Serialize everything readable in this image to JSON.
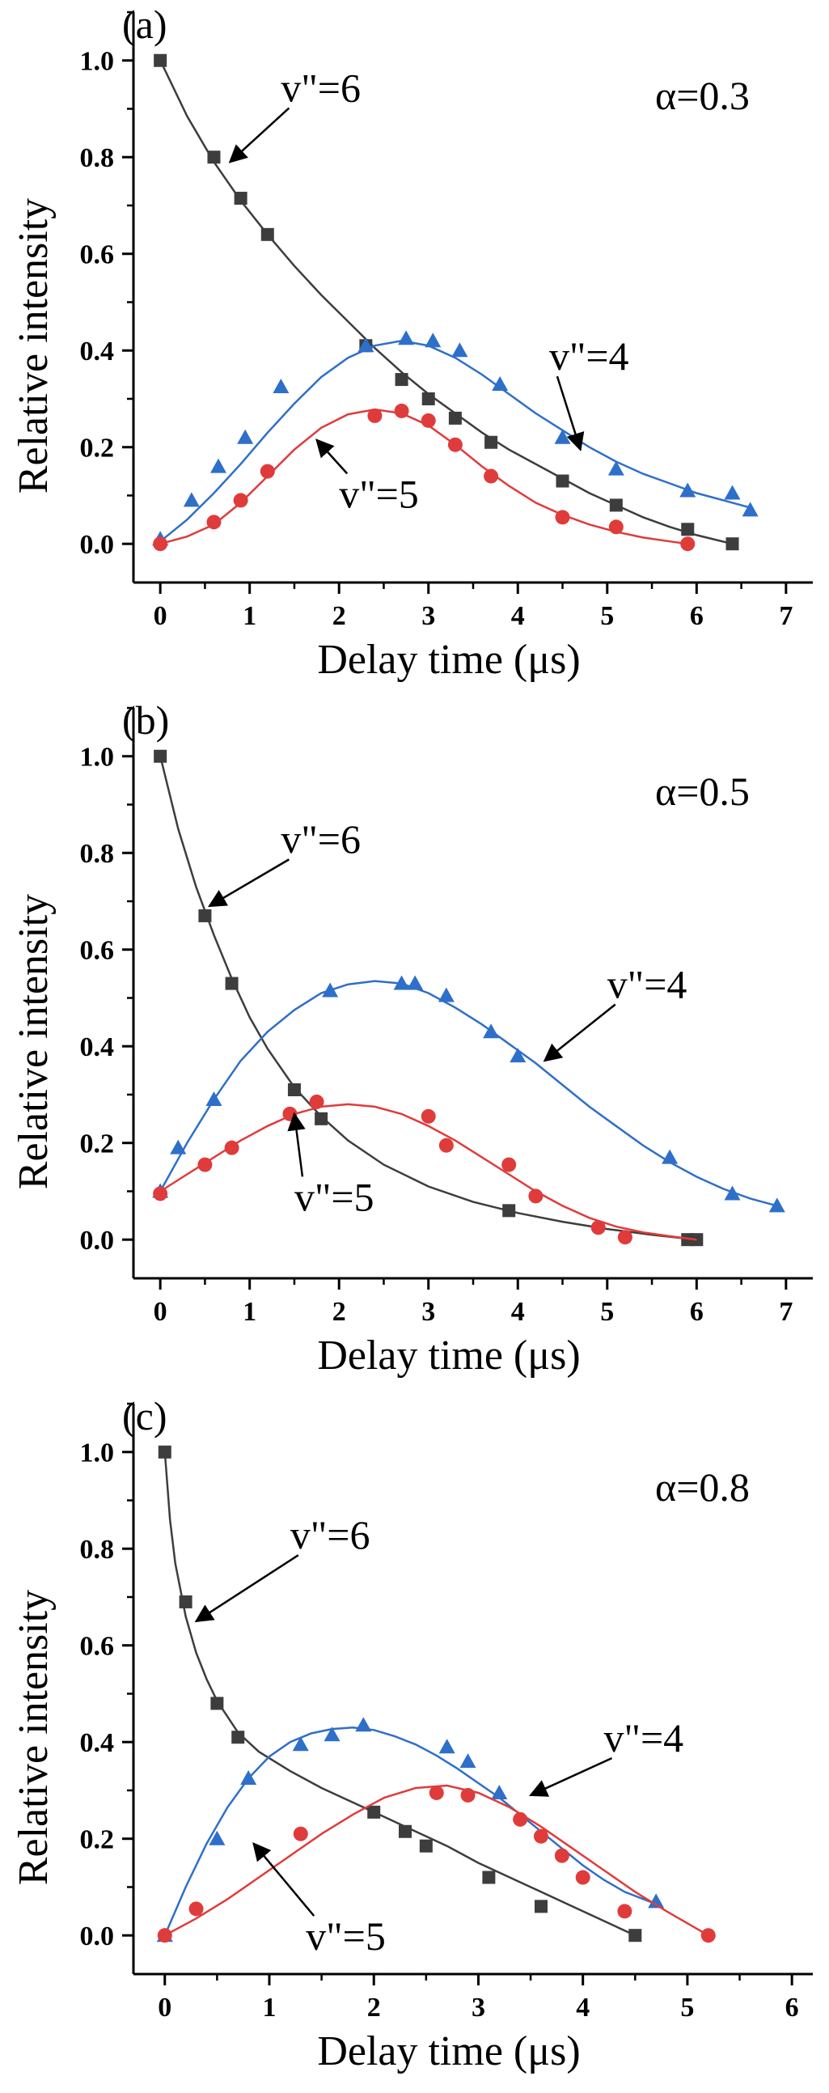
{
  "chart_data": [
    {
      "type": "scatter",
      "panel_label": "(a)",
      "alpha_label": "α=0.3",
      "xlabel": "Delay time (μs)",
      "ylabel": "Relative intensity",
      "xlim": [
        -0.3,
        7.3
      ],
      "ylim": [
        -0.08,
        1.1
      ],
      "x_ticks": [
        "0",
        "1",
        "2",
        "3",
        "4",
        "5",
        "6",
        "7"
      ],
      "y_ticks": [
        "0.0",
        "0.2",
        "0.4",
        "0.6",
        "0.8",
        "1.0"
      ],
      "x_tick_values": [
        0,
        1,
        2,
        3,
        4,
        5,
        6,
        7
      ],
      "y_tick_values": [
        0,
        0.2,
        0.4,
        0.6,
        0.8,
        1.0
      ],
      "grid": false,
      "series": [
        {
          "name": "v\"=6",
          "marker": "square",
          "color": "#3d3d3d",
          "x": [
            0,
            0.6,
            0.9,
            1.2,
            2.3,
            2.7,
            3.0,
            3.3,
            3.7,
            4.5,
            5.1,
            5.9,
            6.4
          ],
          "y": [
            1.0,
            0.8,
            0.715,
            0.64,
            0.41,
            0.34,
            0.3,
            0.26,
            0.21,
            0.13,
            0.08,
            0.03,
            0.0
          ],
          "fit_x": [
            0,
            0.3,
            0.6,
            0.9,
            1.2,
            1.5,
            1.8,
            2.1,
            2.4,
            2.7,
            3.0,
            3.3,
            3.6,
            3.9,
            4.2,
            4.5,
            4.8,
            5.1,
            5.4,
            5.7,
            6.0,
            6.4
          ],
          "fit_y": [
            1.0,
            0.885,
            0.79,
            0.71,
            0.64,
            0.575,
            0.515,
            0.46,
            0.405,
            0.355,
            0.31,
            0.27,
            0.23,
            0.195,
            0.165,
            0.135,
            0.105,
            0.08,
            0.055,
            0.035,
            0.018,
            0.0
          ]
        },
        {
          "name": "v\"=4",
          "marker": "triangle",
          "color": "#2e6fc9",
          "x": [
            0,
            0.35,
            0.65,
            0.95,
            1.35,
            2.3,
            2.75,
            3.05,
            3.35,
            3.8,
            4.5,
            5.1,
            5.9,
            6.4,
            6.6
          ],
          "y": [
            0.01,
            0.09,
            0.16,
            0.22,
            0.325,
            0.41,
            0.425,
            0.42,
            0.4,
            0.33,
            0.22,
            0.155,
            0.11,
            0.105,
            0.07
          ],
          "fit_x": [
            0,
            0.3,
            0.6,
            0.9,
            1.2,
            1.5,
            1.8,
            2.1,
            2.4,
            2.7,
            3.0,
            3.3,
            3.6,
            3.9,
            4.2,
            4.5,
            4.8,
            5.1,
            5.4,
            5.7,
            6.0,
            6.3,
            6.6
          ],
          "fit_y": [
            0.005,
            0.05,
            0.105,
            0.165,
            0.23,
            0.29,
            0.345,
            0.385,
            0.41,
            0.42,
            0.41,
            0.385,
            0.35,
            0.31,
            0.27,
            0.235,
            0.2,
            0.17,
            0.145,
            0.125,
            0.105,
            0.09,
            0.075
          ]
        },
        {
          "name": "v\"=5",
          "marker": "circle",
          "color": "#e03b3b",
          "x": [
            0,
            0.6,
            0.9,
            1.2,
            2.4,
            2.7,
            3.0,
            3.3,
            3.7,
            4.5,
            5.1,
            5.9
          ],
          "y": [
            0.0,
            0.045,
            0.09,
            0.15,
            0.265,
            0.275,
            0.255,
            0.205,
            0.14,
            0.055,
            0.035,
            0.0
          ],
          "fit_x": [
            0,
            0.3,
            0.6,
            0.9,
            1.2,
            1.5,
            1.8,
            2.1,
            2.4,
            2.7,
            3.0,
            3.3,
            3.6,
            3.9,
            4.2,
            4.5,
            4.8,
            5.1,
            5.4,
            5.7,
            5.9
          ],
          "fit_y": [
            0.0,
            0.015,
            0.04,
            0.085,
            0.14,
            0.195,
            0.24,
            0.268,
            0.278,
            0.27,
            0.245,
            0.205,
            0.16,
            0.12,
            0.085,
            0.06,
            0.04,
            0.025,
            0.013,
            0.005,
            0.0
          ]
        }
      ],
      "annotations": [
        {
          "text": "v\"=6",
          "series": "v\"=6",
          "tx": 1.35,
          "ty": 0.915,
          "ax": 0.78,
          "ay": 0.79
        },
        {
          "text": "v\"=4",
          "series": "v\"=4",
          "tx": 4.35,
          "ty": 0.36,
          "ax": 4.7,
          "ay": 0.195
        },
        {
          "text": "v\"=5",
          "series": "v\"=5",
          "tx": 2.0,
          "ty": 0.075,
          "ax": 1.75,
          "ay": 0.215
        }
      ]
    },
    {
      "type": "scatter",
      "panel_label": "(b)",
      "alpha_label": "α=0.5",
      "xlabel": "Delay time  (μs)",
      "ylabel": "Relative intensity",
      "xlim": [
        -0.3,
        7.3
      ],
      "ylim": [
        -0.08,
        1.1
      ],
      "x_ticks": [
        "0",
        "1",
        "2",
        "3",
        "4",
        "5",
        "6",
        "7"
      ],
      "y_ticks": [
        "0.0",
        "0.2",
        "0.4",
        "0.6",
        "0.8",
        "1.0"
      ],
      "x_tick_values": [
        0,
        1,
        2,
        3,
        4,
        5,
        6,
        7
      ],
      "y_tick_values": [
        0,
        0.2,
        0.4,
        0.6,
        0.8,
        1.0
      ],
      "grid": false,
      "series": [
        {
          "name": "v\"=6",
          "marker": "square",
          "color": "#3d3d3d",
          "x": [
            0,
            0.5,
            0.8,
            1.5,
            1.8,
            3.9,
            5.9,
            6.0
          ],
          "y": [
            1.0,
            0.67,
            0.53,
            0.31,
            0.25,
            0.06,
            0.0,
            0.0
          ],
          "fit_x": [
            0,
            0.2,
            0.4,
            0.6,
            0.8,
            1.0,
            1.2,
            1.5,
            1.8,
            2.1,
            2.5,
            3.0,
            3.5,
            4.0,
            4.5,
            5.0,
            5.5,
            6.0
          ],
          "fit_y": [
            1.0,
            0.85,
            0.73,
            0.63,
            0.54,
            0.46,
            0.395,
            0.315,
            0.255,
            0.205,
            0.155,
            0.11,
            0.078,
            0.055,
            0.037,
            0.022,
            0.01,
            0.0
          ]
        },
        {
          "name": "v\"=4",
          "marker": "triangle",
          "color": "#2e6fc9",
          "x": [
            0,
            0.2,
            0.6,
            1.9,
            2.7,
            2.85,
            3.2,
            3.7,
            4.0,
            5.7,
            6.4,
            6.9
          ],
          "y": [
            0.1,
            0.19,
            0.29,
            0.515,
            0.53,
            0.53,
            0.505,
            0.43,
            0.38,
            0.17,
            0.095,
            0.07
          ],
          "fit_x": [
            0,
            0.3,
            0.6,
            0.9,
            1.2,
            1.5,
            1.8,
            2.1,
            2.4,
            2.7,
            3.0,
            3.3,
            3.6,
            3.9,
            4.2,
            4.5,
            4.8,
            5.1,
            5.4,
            5.7,
            6.0,
            6.3,
            6.6,
            6.9
          ],
          "fit_y": [
            0.1,
            0.2,
            0.29,
            0.37,
            0.43,
            0.475,
            0.51,
            0.528,
            0.535,
            0.53,
            0.51,
            0.48,
            0.445,
            0.405,
            0.365,
            0.32,
            0.275,
            0.235,
            0.195,
            0.16,
            0.13,
            0.105,
            0.085,
            0.07
          ]
        },
        {
          "name": "v\"=5",
          "marker": "circle",
          "color": "#e03b3b",
          "x": [
            0,
            0.5,
            0.8,
            1.45,
            1.75,
            3.0,
            3.2,
            3.9,
            4.2,
            4.9,
            5.2
          ],
          "y": [
            0.095,
            0.155,
            0.19,
            0.26,
            0.285,
            0.255,
            0.195,
            0.155,
            0.09,
            0.025,
            0.005
          ],
          "fit_x": [
            0,
            0.3,
            0.6,
            0.9,
            1.2,
            1.5,
            1.8,
            2.1,
            2.4,
            2.7,
            3.0,
            3.3,
            3.6,
            3.9,
            4.2,
            4.5,
            4.8,
            5.1,
            5.4,
            5.7,
            6.0
          ],
          "fit_y": [
            0.1,
            0.135,
            0.17,
            0.205,
            0.235,
            0.26,
            0.275,
            0.28,
            0.275,
            0.26,
            0.235,
            0.205,
            0.17,
            0.135,
            0.1,
            0.07,
            0.045,
            0.027,
            0.015,
            0.007,
            0.0
          ]
        }
      ],
      "annotations": [
        {
          "text": "v\"=6",
          "series": "v\"=6",
          "tx": 1.35,
          "ty": 0.8,
          "ax": 0.55,
          "ay": 0.69
        },
        {
          "text": "v\"=4",
          "series": "v\"=4",
          "tx": 5.0,
          "ty": 0.5,
          "ax": 4.3,
          "ay": 0.37
        },
        {
          "text": "v\"=5",
          "series": "v\"=5",
          "tx": 1.5,
          "ty": 0.06,
          "ax": 1.5,
          "ay": 0.26
        }
      ]
    },
    {
      "type": "scatter",
      "panel_label": "(c)",
      "alpha_label": "α=0.8",
      "xlabel": "Delay time (μs)",
      "ylabel": "Relative intensity",
      "xlim": [
        -0.3,
        6.2
      ],
      "ylim": [
        -0.08,
        1.1
      ],
      "x_ticks": [
        "0",
        "1",
        "2",
        "3",
        "4",
        "5",
        "6"
      ],
      "y_ticks": [
        "0.0",
        "0.2",
        "0.4",
        "0.6",
        "0.8",
        "1.0"
      ],
      "x_tick_values": [
        0,
        1,
        2,
        3,
        4,
        5,
        6
      ],
      "y_tick_values": [
        0,
        0.2,
        0.4,
        0.6,
        0.8,
        1.0
      ],
      "grid": false,
      "series": [
        {
          "name": "v\"=6",
          "marker": "square",
          "color": "#3d3d3d",
          "x": [
            0,
            0.2,
            0.5,
            0.7,
            2.0,
            2.3,
            2.5,
            3.1,
            3.6,
            4.5
          ],
          "y": [
            1.0,
            0.69,
            0.48,
            0.41,
            0.255,
            0.215,
            0.185,
            0.12,
            0.06,
            0.0
          ],
          "fit_x": [
            0,
            0.05,
            0.1,
            0.2,
            0.3,
            0.4,
            0.5,
            0.7,
            0.9,
            1.2,
            1.5,
            1.8,
            2.1,
            2.4,
            2.7,
            3.0,
            3.3,
            3.6,
            3.9,
            4.2,
            4.5
          ],
          "fit_y": [
            1.0,
            0.86,
            0.77,
            0.66,
            0.585,
            0.53,
            0.485,
            0.42,
            0.38,
            0.34,
            0.305,
            0.275,
            0.245,
            0.215,
            0.185,
            0.15,
            0.12,
            0.09,
            0.06,
            0.03,
            0.0
          ]
        },
        {
          "name": "v\"=4",
          "marker": "triangle",
          "color": "#2e6fc9",
          "x": [
            0,
            0.5,
            0.8,
            1.3,
            1.6,
            1.9,
            2.7,
            2.9,
            3.2,
            4.7
          ],
          "y": [
            0.0,
            0.2,
            0.325,
            0.395,
            0.415,
            0.435,
            0.39,
            0.36,
            0.295,
            0.07
          ],
          "fit_x": [
            0,
            0.2,
            0.4,
            0.6,
            0.8,
            1.0,
            1.2,
            1.4,
            1.6,
            1.8,
            2.0,
            2.2,
            2.4,
            2.6,
            2.8,
            3.0,
            3.2,
            3.4,
            3.6,
            3.8,
            4.0,
            4.2,
            4.4,
            4.7
          ],
          "fit_y": [
            0.0,
            0.1,
            0.19,
            0.265,
            0.325,
            0.37,
            0.4,
            0.418,
            0.427,
            0.43,
            0.425,
            0.412,
            0.395,
            0.372,
            0.345,
            0.315,
            0.285,
            0.25,
            0.215,
            0.18,
            0.145,
            0.115,
            0.09,
            0.065
          ]
        },
        {
          "name": "v\"=5",
          "marker": "circle",
          "color": "#e03b3b",
          "x": [
            0,
            0.3,
            1.3,
            2.6,
            2.9,
            3.4,
            3.6,
            3.8,
            4.0,
            4.4,
            5.2
          ],
          "y": [
            0.0,
            0.055,
            0.21,
            0.295,
            0.29,
            0.24,
            0.205,
            0.165,
            0.12,
            0.05,
            0.0
          ],
          "fit_x": [
            0,
            0.3,
            0.6,
            0.9,
            1.2,
            1.5,
            1.8,
            2.1,
            2.4,
            2.7,
            3.0,
            3.3,
            3.6,
            3.9,
            4.2,
            4.5,
            4.8,
            5.2
          ],
          "fit_y": [
            0.0,
            0.035,
            0.075,
            0.12,
            0.165,
            0.21,
            0.25,
            0.285,
            0.305,
            0.31,
            0.295,
            0.265,
            0.225,
            0.18,
            0.135,
            0.09,
            0.05,
            0.0
          ]
        }
      ],
      "annotations": [
        {
          "text": "v\"=6",
          "series": "v\"=6",
          "tx": 1.2,
          "ty": 0.8,
          "ax": 0.3,
          "ay": 0.65
        },
        {
          "text": "v\"=4",
          "series": "v\"=4",
          "tx": 4.2,
          "ty": 0.38,
          "ax": 3.5,
          "ay": 0.29
        },
        {
          "text": "v\"=5",
          "series": "v\"=5",
          "tx": 1.35,
          "ty": -0.03,
          "ax": 0.85,
          "ay": 0.19
        }
      ]
    }
  ]
}
